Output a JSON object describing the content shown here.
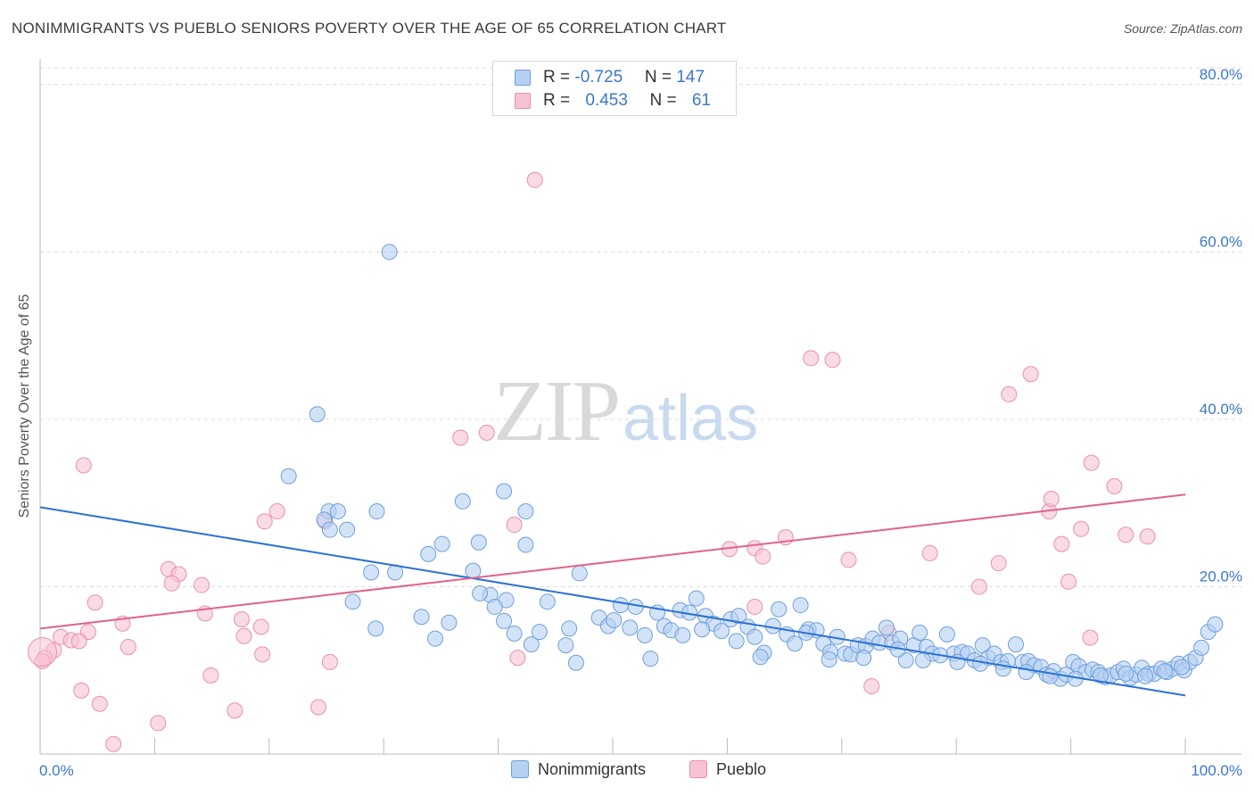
{
  "title": "NONIMMIGRANTS VS PUEBLO SENIORS POVERTY OVER THE AGE OF 65 CORRELATION CHART",
  "source": "Source: ZipAtlas.com",
  "watermark": {
    "zip": "ZIP",
    "atlas": "atlas"
  },
  "colors": {
    "blue_fill": "#b6d0f2",
    "blue_stroke": "#6f9fdc",
    "blue_line": "#2a72d4",
    "pink_fill": "#f7c3d3",
    "pink_stroke": "#e98fab",
    "pink_line": "#e0628b",
    "grid": "#dcdcdc",
    "tick_text": "#3b78c7"
  },
  "legend_top": [
    {
      "series": "Nonimmigrants",
      "r_label": "R = ",
      "r_value": "-0.725",
      "n_label": "N = ",
      "n_value": "147"
    },
    {
      "series": "Pueblo",
      "r_label": "R = ",
      "r_value": "0.453",
      "n_label": "N = ",
      "n_value": "61"
    }
  ],
  "legend_bottom": [
    "Nonimmigrants",
    "Pueblo"
  ],
  "chart_data": {
    "type": "scatter",
    "title": "NONIMMIGRANTS VS PUEBLO SENIORS POVERTY OVER THE AGE OF 65 CORRELATION CHART",
    "xlabel": "",
    "ylabel": "Seniors Poverty Over the Age of 65",
    "xlim": [
      0,
      100
    ],
    "ylim": [
      0,
      82
    ],
    "x_tick_labels": [
      "0.0%",
      "100.0%"
    ],
    "y_ticks": [
      20,
      40,
      60,
      80
    ],
    "y_tick_labels": [
      "20.0%",
      "40.0%",
      "60.0%",
      "80.0%"
    ],
    "grid": true,
    "legend": "top-center and bottom",
    "series": [
      {
        "name": "Nonimmigrants",
        "r": -0.725,
        "n": 147,
        "trend": {
          "x0": 0,
          "y0": 29.5,
          "x1": 100,
          "y1": 7.0
        },
        "points": [
          [
            30.5,
            60
          ],
          [
            24.2,
            40.6
          ],
          [
            21.7,
            33.2
          ],
          [
            25.2,
            29.0
          ],
          [
            26,
            29.0
          ],
          [
            24.8,
            28.0
          ],
          [
            25.3,
            26.8
          ],
          [
            26.8,
            26.8
          ],
          [
            29.4,
            29.0
          ],
          [
            36.9,
            30.2
          ],
          [
            40.5,
            31.4
          ],
          [
            42.4,
            29.0
          ],
          [
            28.9,
            21.7
          ],
          [
            31,
            21.7
          ],
          [
            33.9,
            23.9
          ],
          [
            35.1,
            25.1
          ],
          [
            37.8,
            21.9
          ],
          [
            39.3,
            19.0
          ],
          [
            40.7,
            18.4
          ],
          [
            38.3,
            25.3
          ],
          [
            42.4,
            25.0
          ],
          [
            27.3,
            18.2
          ],
          [
            29.3,
            15.0
          ],
          [
            33.3,
            16.4
          ],
          [
            34.5,
            13.8
          ],
          [
            35.7,
            15.7
          ],
          [
            38.4,
            19.2
          ],
          [
            39.7,
            17.6
          ],
          [
            40.5,
            15.9
          ],
          [
            41.4,
            14.4
          ],
          [
            42.9,
            13.1
          ],
          [
            43.6,
            14.6
          ],
          [
            44.3,
            18.2
          ],
          [
            45.9,
            13.0
          ],
          [
            46.2,
            15.0
          ],
          [
            46.8,
            10.9
          ],
          [
            47.1,
            21.6
          ],
          [
            48.8,
            16.3
          ],
          [
            49.6,
            15.3
          ],
          [
            50.1,
            16.0
          ],
          [
            50.7,
            17.8
          ],
          [
            51.5,
            15.1
          ],
          [
            52,
            17.6
          ],
          [
            52.8,
            14.2
          ],
          [
            53.3,
            11.4
          ],
          [
            53.9,
            16.9
          ],
          [
            54.5,
            15.3
          ],
          [
            55.1,
            14.8
          ],
          [
            55.9,
            17.2
          ],
          [
            56.7,
            16.9
          ],
          [
            57.3,
            18.6
          ],
          [
            58.1,
            16.5
          ],
          [
            58.8,
            15.6
          ],
          [
            59.5,
            14.7
          ],
          [
            60.3,
            16.1
          ],
          [
            61,
            16.5
          ],
          [
            61.8,
            15.2
          ],
          [
            62.4,
            14.0
          ],
          [
            63.2,
            12.1
          ],
          [
            64,
            15.3
          ],
          [
            64.5,
            17.3
          ],
          [
            65.2,
            14.3
          ],
          [
            65.9,
            13.2
          ],
          [
            66.4,
            17.8
          ],
          [
            67.1,
            14.9
          ],
          [
            67.8,
            14.8
          ],
          [
            68.4,
            13.2
          ],
          [
            69,
            12.2
          ],
          [
            69.6,
            14.0
          ],
          [
            70.3,
            12.0
          ],
          [
            70.8,
            11.9
          ],
          [
            71.4,
            13.0
          ],
          [
            72.1,
            12.9
          ],
          [
            72.7,
            13.8
          ],
          [
            73.3,
            13.3
          ],
          [
            73.9,
            15.1
          ],
          [
            74.4,
            13.3
          ],
          [
            75.1,
            13.8
          ],
          [
            75.6,
            11.2
          ],
          [
            76.3,
            13.0
          ],
          [
            76.8,
            14.5
          ],
          [
            77.4,
            12.8
          ],
          [
            77.9,
            12.0
          ],
          [
            78.6,
            11.8
          ],
          [
            79.2,
            14.3
          ],
          [
            79.8,
            12.0
          ],
          [
            80.5,
            12.2
          ],
          [
            81,
            12.0
          ],
          [
            81.6,
            11.2
          ],
          [
            82.3,
            13.0
          ],
          [
            82.8,
            11.5
          ],
          [
            83.3,
            12.0
          ],
          [
            83.9,
            11.0
          ],
          [
            84.5,
            11.1
          ],
          [
            85.2,
            13.1
          ],
          [
            85.8,
            11.0
          ],
          [
            86.3,
            11.1
          ],
          [
            86.8,
            10.6
          ],
          [
            87.4,
            10.4
          ],
          [
            87.9,
            9.5
          ],
          [
            88.5,
            9.9
          ],
          [
            89.1,
            9.0
          ],
          [
            89.6,
            9.5
          ],
          [
            90.2,
            11.0
          ],
          [
            90.7,
            10.5
          ],
          [
            91.3,
            9.8
          ],
          [
            91.9,
            10.1
          ],
          [
            92.4,
            9.8
          ],
          [
            93,
            9.2
          ],
          [
            93.5,
            9.4
          ],
          [
            94.1,
            9.8
          ],
          [
            94.6,
            10.2
          ],
          [
            95.2,
            9.1
          ],
          [
            95.7,
            9.5
          ],
          [
            96.2,
            10.3
          ],
          [
            96.8,
            9.6
          ],
          [
            97.3,
            9.6
          ],
          [
            97.9,
            10.2
          ],
          [
            98.4,
            9.8
          ],
          [
            98.9,
            10.2
          ],
          [
            99.4,
            10.8
          ],
          [
            99.9,
            10.0
          ],
          [
            100.4,
            11.0
          ],
          [
            100.9,
            11.5
          ],
          [
            101.4,
            12.7
          ],
          [
            102,
            14.6
          ],
          [
            102.6,
            15.5
          ],
          [
            56.1,
            14.2
          ],
          [
            57.8,
            14.9
          ],
          [
            60.8,
            13.5
          ],
          [
            62.9,
            11.6
          ],
          [
            66.9,
            14.5
          ],
          [
            68.9,
            11.3
          ],
          [
            71.9,
            11.5
          ],
          [
            74.9,
            12.5
          ],
          [
            77.1,
            11.2
          ],
          [
            80.1,
            11.0
          ],
          [
            82.1,
            10.8
          ],
          [
            84.1,
            10.2
          ],
          [
            86.1,
            9.8
          ],
          [
            88.2,
            9.3
          ],
          [
            90.4,
            9.0
          ],
          [
            92.6,
            9.4
          ],
          [
            94.8,
            9.6
          ],
          [
            96.5,
            9.3
          ],
          [
            98.2,
            9.9
          ],
          [
            99.7,
            10.4
          ]
        ]
      },
      {
        "name": "Pueblo",
        "r": 0.453,
        "n": 61,
        "trend": {
          "x0": 0,
          "y0": 15.0,
          "x1": 100,
          "y1": 31.0
        },
        "points": [
          [
            43.2,
            68.6
          ],
          [
            67.3,
            47.3
          ],
          [
            69.2,
            47.1
          ],
          [
            84.6,
            43
          ],
          [
            86.5,
            45.4
          ],
          [
            88.1,
            29.0
          ],
          [
            88.3,
            30.5
          ],
          [
            91.8,
            34.8
          ],
          [
            89.2,
            25.1
          ],
          [
            93.8,
            32
          ],
          [
            94.8,
            26.2
          ],
          [
            96.7,
            26.0
          ],
          [
            90.9,
            26.9
          ],
          [
            65.1,
            25.9
          ],
          [
            62.4,
            24.6
          ],
          [
            60.2,
            24.5
          ],
          [
            63.1,
            23.6
          ],
          [
            70.6,
            23.2
          ],
          [
            77.7,
            24.0
          ],
          [
            83.7,
            22.8
          ],
          [
            82,
            20.0
          ],
          [
            89.8,
            20.6
          ],
          [
            74.1,
            14.5
          ],
          [
            62.4,
            17.6
          ],
          [
            91.7,
            13.9
          ],
          [
            72.6,
            8.1
          ],
          [
            36.7,
            37.8
          ],
          [
            39,
            38.4
          ],
          [
            3.8,
            34.5
          ],
          [
            20.7,
            29.0
          ],
          [
            19.6,
            27.8
          ],
          [
            24.9,
            27.8
          ],
          [
            41.4,
            27.4
          ],
          [
            11.2,
            22.1
          ],
          [
            12.1,
            21.5
          ],
          [
            14.1,
            20.2
          ],
          [
            11.5,
            20.4
          ],
          [
            4.8,
            18.1
          ],
          [
            14.4,
            16.8
          ],
          [
            7.2,
            15.6
          ],
          [
            17.6,
            16.1
          ],
          [
            19.3,
            15.2
          ],
          [
            4.2,
            14.6
          ],
          [
            1.8,
            14.0
          ],
          [
            2.7,
            13.6
          ],
          [
            3.4,
            13.5
          ],
          [
            7.7,
            12.8
          ],
          [
            17.8,
            14.1
          ],
          [
            19.4,
            11.9
          ],
          [
            1.2,
            12.4
          ],
          [
            0.4,
            11.5
          ],
          [
            0.2,
            11.1
          ],
          [
            14.9,
            9.4
          ],
          [
            3.6,
            7.6
          ],
          [
            5.2,
            6.0
          ],
          [
            10.3,
            3.7
          ],
          [
            17,
            5.2
          ],
          [
            24.3,
            5.6
          ],
          [
            25.3,
            11.0
          ],
          [
            41.7,
            11.5
          ],
          [
            6.4,
            1.2
          ]
        ]
      }
    ]
  }
}
